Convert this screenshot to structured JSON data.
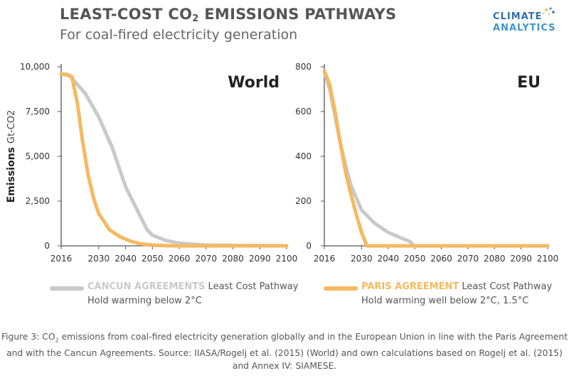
{
  "header": {
    "title_prefix": "LEAST-COST CO",
    "title_sub": "2",
    "title_suffix": " EMISSIONS PATHWAYS",
    "subtitle": "For coal-fired electricity generation"
  },
  "logo": {
    "line1": "CLIMATE",
    "line2": "ANALYTICS"
  },
  "colors": {
    "cancun": "#c9c9c9",
    "paris": "#f5b95f",
    "axis": "#555555",
    "brand_dark": "#2f6fa8",
    "brand_light": "#3f96c9"
  },
  "legend": {
    "cancun": {
      "name": "CANCUN AGREEMENTS",
      "rest": " Least Cost Pathway",
      "line2": "Hold warming below 2°C"
    },
    "paris": {
      "name": "PARIS AGREEMENT",
      "rest": " Least Cost Pathway",
      "line2": "Hold warming well below 2°C, 1.5°C"
    }
  },
  "caption": {
    "p1": "Figure 3: CO",
    "sub": "2",
    "p2": " emissions from coal-fired electricity generation globally and in the European Union in line with the Paris Agreement and with the Cancun Agreements. Source: IIASA/Rogelj et al. (2015) (World) and own calculations based on Rogelj et al. (2015) and Annex IV: SIAMESE."
  },
  "chart_data": [
    {
      "type": "line",
      "title": "World",
      "ylabel": "Emissions Gt-CO2",
      "xlim": [
        2016,
        2100
      ],
      "ylim": [
        0,
        10000
      ],
      "x_ticks": [
        2016,
        2030,
        2040,
        2050,
        2060,
        2070,
        2080,
        2090,
        2100
      ],
      "y_ticks": [
        0,
        2500,
        5000,
        7500,
        10000
      ],
      "y_tick_labels": [
        "0",
        "2,500",
        "5,000",
        "7,500",
        "10,000"
      ],
      "series": [
        {
          "name": "CANCUN AGREEMENTS",
          "color": "#c9c9c9",
          "x": [
            2016,
            2019,
            2021,
            2025,
            2030,
            2035,
            2040,
            2045,
            2048,
            2050,
            2055,
            2060,
            2070,
            2100
          ],
          "y": [
            9600,
            9500,
            9200,
            8500,
            7200,
            5500,
            3300,
            1800,
            900,
            600,
            300,
            150,
            40,
            0
          ]
        },
        {
          "name": "PARIS AGREEMENT",
          "color": "#f5b95f",
          "x": [
            2016,
            2018,
            2020,
            2022,
            2024,
            2026,
            2028,
            2030,
            2034,
            2038,
            2042,
            2046,
            2050,
            2055,
            2060,
            2100
          ],
          "y": [
            9600,
            9580,
            9450,
            8000,
            5800,
            4000,
            2700,
            1800,
            900,
            500,
            250,
            100,
            40,
            10,
            0,
            0
          ]
        }
      ]
    },
    {
      "type": "line",
      "title": "EU",
      "xlim": [
        2016,
        2100
      ],
      "ylim": [
        0,
        800
      ],
      "x_ticks": [
        2016,
        2030,
        2040,
        2050,
        2060,
        2070,
        2080,
        2090,
        2100
      ],
      "y_ticks": [
        0,
        200,
        400,
        600,
        800
      ],
      "y_tick_labels": [
        "0",
        "200",
        "400",
        "600",
        "800"
      ],
      "series": [
        {
          "name": "CANCUN AGREEMENTS",
          "color": "#c9c9c9",
          "x": [
            2016,
            2018,
            2020,
            2022,
            2024,
            2026,
            2030,
            2035,
            2040,
            2045,
            2048,
            2050,
            2100
          ],
          "y": [
            780,
            700,
            580,
            460,
            360,
            270,
            160,
            100,
            60,
            35,
            20,
            0,
            0
          ]
        },
        {
          "name": "PARIS AGREEMENT",
          "color": "#f5b95f",
          "x": [
            2016,
            2018,
            2020,
            2022,
            2024,
            2026,
            2028,
            2030,
            2032,
            2100
          ],
          "y": [
            780,
            720,
            600,
            460,
            330,
            230,
            140,
            60,
            0,
            0
          ]
        }
      ]
    }
  ]
}
